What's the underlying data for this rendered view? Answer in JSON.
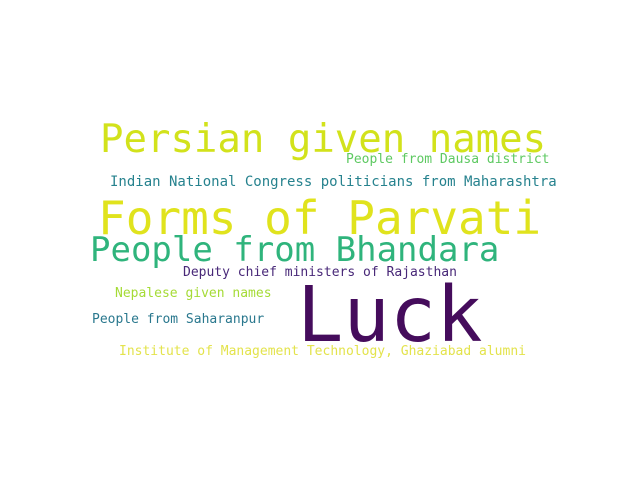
{
  "words": [
    {
      "id": "persian",
      "text": "Persian given names",
      "color": "#d2e21b"
    },
    {
      "id": "dausa",
      "text": "People from Dausa district",
      "color": "#5ec962"
    },
    {
      "id": "inc",
      "text": "Indian National Congress politicians from Maharashtra",
      "color": "#26828e"
    },
    {
      "id": "parvati",
      "text": "Forms of Parvati",
      "color": "#e0e31d"
    },
    {
      "id": "bhandara",
      "text": "People from Bhandara",
      "color": "#2fb47c"
    },
    {
      "id": "deputy",
      "text": "Deputy chief ministers of Rajasthan",
      "color": "#482878"
    },
    {
      "id": "nepalese",
      "text": "Nepalese given names",
      "color": "#a5db36"
    },
    {
      "id": "luck",
      "text": "Luck",
      "color": "#450c5c"
    },
    {
      "id": "saharan",
      "text": "People from Saharanpur",
      "color": "#2a788e"
    },
    {
      "id": "imt",
      "text": "Institute of Management Technology, Ghaziabad alumni",
      "color": "#e3e34c"
    }
  ]
}
